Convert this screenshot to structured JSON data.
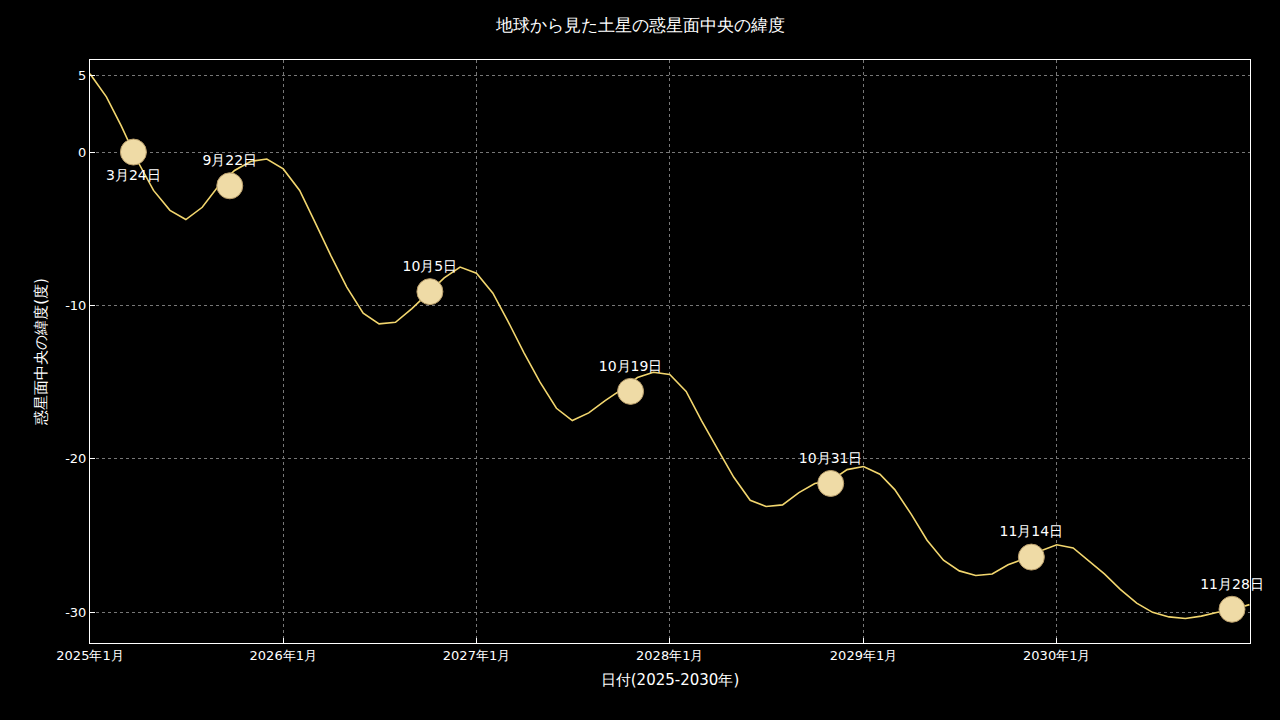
{
  "chart_data": {
    "type": "line",
    "title": "地球から見た土星の惑星面中央の緯度",
    "x_label": "日付(2025-2030年)",
    "y_label": "惑星面中央の緯度(度)",
    "xlim": [
      "2025-01-01",
      "2031-01-01"
    ],
    "xticks": [
      {
        "value": "2025-01-01",
        "label": "2025年1月"
      },
      {
        "value": "2026-01-01",
        "label": "2026年1月"
      },
      {
        "value": "2027-01-01",
        "label": "2027年1月"
      },
      {
        "value": "2028-01-01",
        "label": "2028年1月"
      },
      {
        "value": "2029-01-01",
        "label": "2029年1月"
      },
      {
        "value": "2030-01-01",
        "label": "2030年1月"
      }
    ],
    "ylim": [
      -32,
      6
    ],
    "yticks": [
      -30,
      -20,
      -10,
      0,
      5
    ],
    "grid": true,
    "series": [
      {
        "type": "line",
        "color": "#f2d66e",
        "line_style": "solid",
        "x": [
          "2025-01-01",
          "2025-02-01",
          "2025-03-01",
          "2025-04-01",
          "2025-05-01",
          "2025-06-01",
          "2025-07-01",
          "2025-08-01",
          "2025-09-01",
          "2025-10-01",
          "2025-11-01",
          "2025-12-01",
          "2026-01-01",
          "2026-02-01",
          "2026-03-01",
          "2026-04-01",
          "2026-05-01",
          "2026-06-01",
          "2026-07-01",
          "2026-08-01",
          "2026-09-01",
          "2026-10-01",
          "2026-11-01",
          "2026-12-01",
          "2027-01-01",
          "2027-02-01",
          "2027-03-01",
          "2027-04-01",
          "2027-05-01",
          "2027-06-01",
          "2027-07-01",
          "2027-08-01",
          "2027-09-01",
          "2027-10-01",
          "2027-11-01",
          "2027-12-01",
          "2028-01-01",
          "2028-02-01",
          "2028-03-01",
          "2028-04-01",
          "2028-05-01",
          "2028-06-01",
          "2028-07-01",
          "2028-08-01",
          "2028-09-01",
          "2028-10-01",
          "2028-11-01",
          "2028-12-01",
          "2029-01-01",
          "2029-02-01",
          "2029-03-01",
          "2029-04-01",
          "2029-05-01",
          "2029-06-01",
          "2029-07-01",
          "2029-08-01",
          "2029-09-01",
          "2029-10-01",
          "2029-11-01",
          "2029-12-01",
          "2030-01-01",
          "2030-02-01",
          "2030-03-01",
          "2030-04-01",
          "2030-05-01",
          "2030-06-01",
          "2030-07-01",
          "2030-08-01",
          "2030-09-01",
          "2030-10-01",
          "2030-11-01",
          "2030-12-01",
          "2030-12-31"
        ],
        "values": [
          5.1,
          3.6,
          1.7,
          -0.6,
          -2.5,
          -3.8,
          -4.4,
          -3.6,
          -2.2,
          -1.2,
          -0.6,
          -0.45,
          -1.1,
          -2.5,
          -4.5,
          -6.75,
          -8.8,
          -10.5,
          -11.2,
          -11.1,
          -10.2,
          -9.2,
          -8.2,
          -7.5,
          -7.9,
          -9.2,
          -11,
          -13.1,
          -15,
          -16.7,
          -17.5,
          -17,
          -16.2,
          -15.5,
          -14.7,
          -14.35,
          -14.5,
          -15.6,
          -17.5,
          -19.4,
          -21.2,
          -22.7,
          -23.1,
          -23,
          -22.2,
          -21.6,
          -21.4,
          -20.7,
          -20.5,
          -21,
          -22,
          -23.6,
          -25.3,
          -26.6,
          -27.3,
          -27.6,
          -27.5,
          -26.9,
          -26.5,
          -26,
          -25.6,
          -25.8,
          -26.6,
          -27.5,
          -28.5,
          -29.4,
          -30,
          -30.3,
          -30.4,
          -30.25,
          -30,
          -29.8,
          -29.5
        ]
      },
      {
        "type": "scatter",
        "marker": "circle",
        "color": "#efdba6",
        "x": [
          "2025-03-24",
          "2025-09-22",
          "2026-10-05",
          "2027-10-19",
          "2028-10-31",
          "2029-11-14",
          "2030-11-28"
        ],
        "values": [
          0,
          -2.2,
          -9.1,
          -15.6,
          -21.6,
          -26.4,
          -29.8
        ],
        "labels": [
          "3月24日",
          "9月22日",
          "10月5日",
          "10月19日",
          "10月31日",
          "11月14日",
          "11月28日"
        ]
      }
    ]
  }
}
